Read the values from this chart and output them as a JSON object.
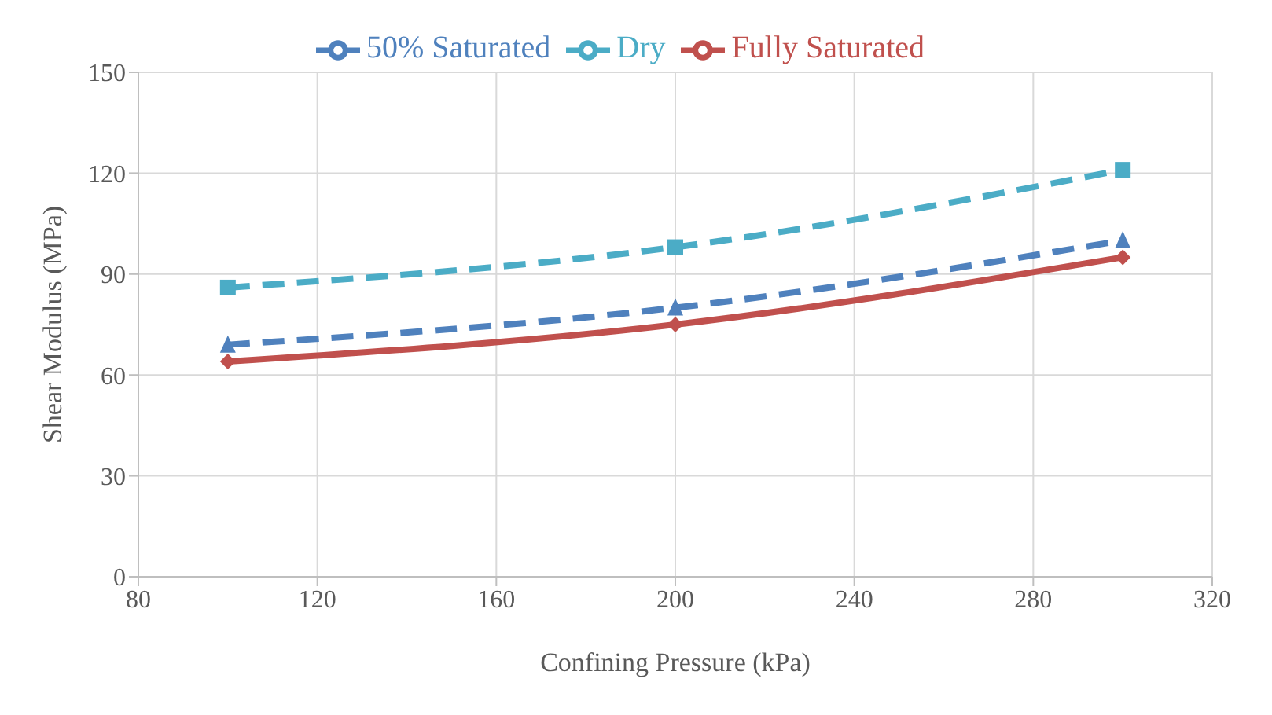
{
  "chart_data": {
    "type": "line",
    "xlabel": "Confining  Pressure (kPa)",
    "ylabel": "Shear Modulus  (MPa)",
    "x": [
      100,
      200,
      300
    ],
    "series": [
      {
        "name": "Dry",
        "color": "#4bacc6",
        "values": [
          86,
          98,
          121
        ],
        "marker": "square",
        "line_style": "dashed"
      },
      {
        "name": "50% Saturated",
        "color": "#4f81bd",
        "values": [
          69,
          80,
          100
        ],
        "marker": "triangle",
        "line_style": "dashed"
      },
      {
        "name": "Fully Saturated",
        "color": "#c0504d",
        "values": [
          64,
          75,
          95
        ],
        "marker": "diamond",
        "line_style": "solid"
      }
    ],
    "xlim": [
      80,
      320
    ],
    "xticks": [
      80,
      120,
      160,
      200,
      240,
      280,
      320
    ],
    "ylim": [
      0,
      150
    ],
    "yticks": [
      0,
      30,
      60,
      90,
      120,
      150
    ],
    "grid": true,
    "legend": "top"
  }
}
